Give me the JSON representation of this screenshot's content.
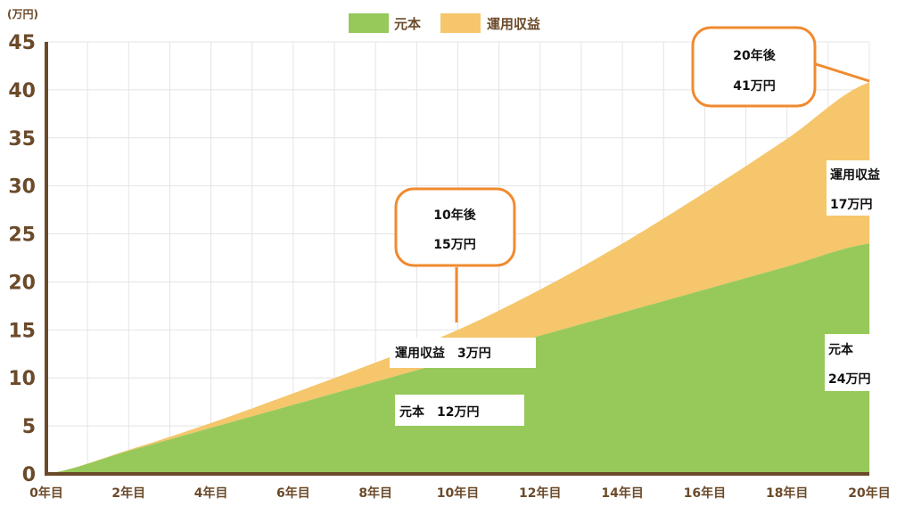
{
  "chart_data": {
    "type": "area",
    "y_unit_label": "(万円)",
    "x_ticks": [
      "0年目",
      "2年目",
      "4年目",
      "6年目",
      "8年目",
      "10年目",
      "12年目",
      "14年目",
      "16年目",
      "18年目",
      "20年目"
    ],
    "y_ticks": [
      "0",
      "5",
      "10",
      "15",
      "20",
      "25",
      "30",
      "35",
      "40",
      "45"
    ],
    "ylim": [
      0,
      45
    ],
    "xlim": [
      0,
      20
    ],
    "grid": true,
    "legend_position": "top-center",
    "stacked": true,
    "x": [
      0,
      2,
      4,
      6,
      8,
      10,
      12,
      14,
      16,
      18,
      20
    ],
    "series": [
      {
        "name": "元本",
        "color": "#97c95a",
        "values": [
          0,
          2.4,
          4.8,
          7.2,
          9.6,
          12,
          14.4,
          16.8,
          19.2,
          21.6,
          24
        ]
      },
      {
        "name": "運用収益",
        "color": "#f5c66b",
        "values": [
          0,
          0.1,
          0.5,
          1.2,
          2.0,
          3.0,
          4.8,
          7.2,
          10.1,
          13.3,
          16.8
        ]
      }
    ],
    "annotations": {
      "mid_return": "運用収益　3万円",
      "mid_principal": "元本　12万円",
      "end_return_line1": "運用収益",
      "end_return_line2": "17万円",
      "end_principal_line1": "元本",
      "end_principal_line2": "24万円",
      "callout_10_line1": "10年後",
      "callout_10_line2": "15万円",
      "callout_20_line1": "20年後",
      "callout_20_line2": "41万円"
    }
  },
  "colors": {
    "axis": "#6b4a2a",
    "grid": "#e4e4e4",
    "callout_border": "#f08a2e"
  }
}
